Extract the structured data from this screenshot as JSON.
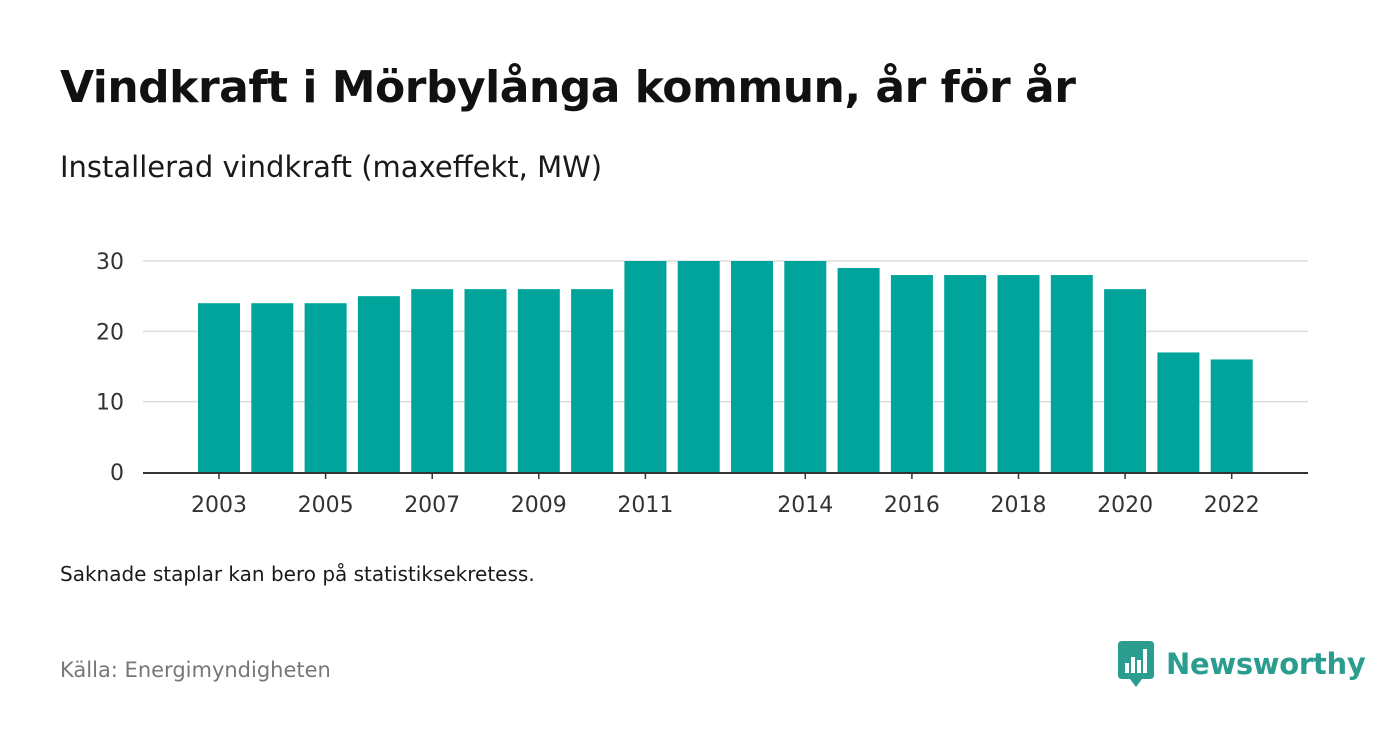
{
  "header": {
    "title": "Vindkraft i Mörbylånga kommun, år för år",
    "subtitle": "Installerad vindkraft (maxeffekt, MW)"
  },
  "chart_data": {
    "type": "bar",
    "categories": [
      "2003",
      "2004",
      "2005",
      "2006",
      "2007",
      "2008",
      "2009",
      "2010",
      "2011",
      "2012",
      "2013",
      "2014",
      "2015",
      "2016",
      "2017",
      "2018",
      "2019",
      "2020",
      "2021",
      "2022"
    ],
    "values": [
      24,
      24,
      24,
      25,
      26,
      26,
      26,
      26,
      30,
      30,
      30,
      30,
      29,
      28,
      28,
      28,
      28,
      26,
      17,
      16
    ],
    "x_tick_labels": [
      "2003",
      "2005",
      "2007",
      "2009",
      "2011",
      "2014",
      "2016",
      "2018",
      "2020",
      "2022"
    ],
    "y_ticks": [
      0,
      10,
      20,
      30
    ],
    "ylim": [
      0,
      30
    ],
    "title": "Vindkraft i Mörbylånga kommun, år för år",
    "subtitle": "Installerad vindkraft (maxeffekt, MW)",
    "xlabel": "",
    "ylabel": "",
    "grid": true,
    "legend": "none",
    "bar_color": "#00a49a",
    "grid_color": "#dddddd",
    "axis_color": "#333333"
  },
  "footer": {
    "note": "Saknade staplar kan bero på statistiksekretess.",
    "source": "Källa: Energimyndigheten",
    "brand": "Newsworthy",
    "brand_icon": "newsworthy-logo-icon",
    "brand_color": "#2a9d8f"
  }
}
